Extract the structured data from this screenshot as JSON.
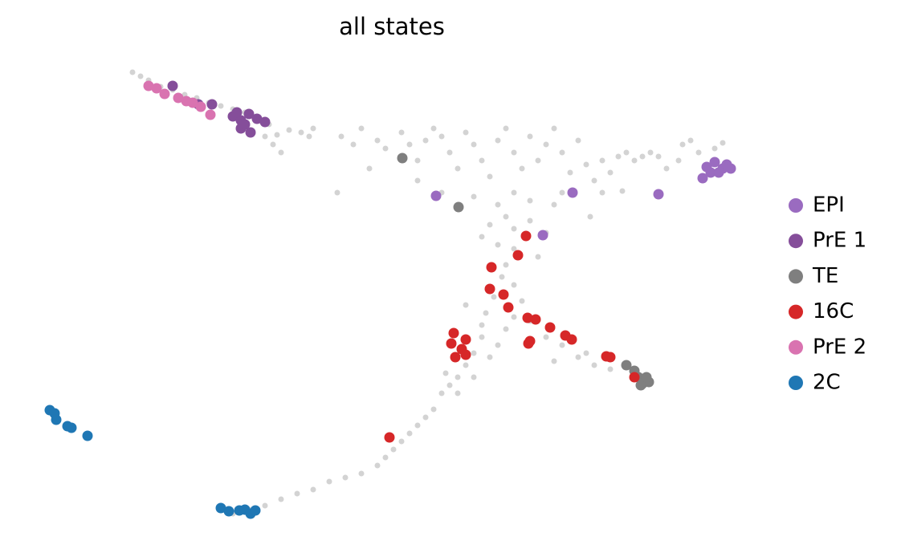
{
  "chart_data": {
    "type": "scatter",
    "title": "all states",
    "legend": "right",
    "background": {
      "color": "#d3d3d3",
      "x": [
        165,
        175,
        185,
        200,
        215,
        230,
        245,
        260,
        275,
        290,
        305,
        320,
        335,
        345,
        350,
        360,
        375,
        385,
        390,
        340,
        330,
        425,
        440,
        450,
        460,
        470,
        480,
        500,
        510,
        520,
        530,
        540,
        550,
        560,
        570,
        580,
        590,
        600,
        610,
        620,
        630,
        640,
        650,
        660,
        670,
        680,
        690,
        700,
        710,
        720,
        730,
        740,
        750,
        760,
        770,
        780,
        790,
        800,
        810,
        820,
        830,
        845,
        850,
        860,
        870,
        890,
        900,
        420,
        520,
        550,
        590,
        620,
        640,
        660,
        690,
        700,
        735,
        750,
        775,
        630,
        610,
        640,
        600,
        660,
        680,
        620,
        640,
        670,
        630,
        625,
        615,
        605,
        600,
        640,
        650,
        640,
        630,
        600,
        590,
        580,
        570,
        560,
        555,
        620,
        610,
        580,
        660,
        680,
        700,
        690,
        720,
        740,
        760,
        730,
        710,
        550,
        540,
        530,
        520,
        510,
        500,
        490,
        480,
        470,
        450,
        430,
        410,
        390,
        370,
        350,
        330,
        310,
        290,
        570,
        590
      ],
      "y": [
        600,
        595,
        590,
        582,
        578,
        572,
        568,
        562,
        558,
        554,
        550,
        542,
        535,
        522,
        500,
        528,
        525,
        520,
        530,
        510,
        520,
        520,
        510,
        530,
        480,
        515,
        505,
        525,
        510,
        490,
        515,
        530,
        520,
        500,
        480,
        525,
        510,
        490,
        470,
        515,
        530,
        500,
        480,
        520,
        490,
        510,
        530,
        500,
        475,
        515,
        485,
        465,
        490,
        475,
        495,
        500,
        490,
        495,
        500,
        495,
        480,
        490,
        510,
        515,
        500,
        505,
        512,
        450,
        465,
        450,
        445,
        435,
        450,
        440,
        435,
        450,
        420,
        450,
        452,
        420,
        410,
        405,
        395,
        415,
        400,
        385,
        380,
        370,
        360,
        345,
        320,
        300,
        285,
        335,
        315,
        295,
        280,
        270,
        250,
        235,
        220,
        210,
        225,
        260,
        245,
        310,
        290,
        270,
        260,
        240,
        245,
        235,
        230,
        250,
        270,
        200,
        180,
        170,
        160,
        150,
        140,
        130,
        120,
        110,
        100,
        95,
        90,
        80,
        75,
        68,
        60,
        55,
        50,
        200,
        220
      ]
    },
    "series": [
      {
        "name": "EPI",
        "color": "#9a6bc0",
        "x": [
          543,
          713,
          676,
          820,
          880,
          890,
          900,
          905,
          885,
          875,
          910,
          895
        ],
        "y": [
          446,
          450,
          397,
          448,
          482,
          488,
          480,
          485,
          475,
          468,
          480,
          475
        ]
      },
      {
        "name": "PrE 1",
        "color": "#854e9a",
        "x": [
          215,
          247,
          264,
          290,
          300,
          310,
          320,
          330,
          300,
          312,
          295,
          305
        ],
        "y": [
          583,
          560,
          560,
          545,
          540,
          548,
          542,
          538,
          530,
          525,
          550,
          535
        ]
      },
      {
        "name": "TE",
        "color": "#7f7f7f",
        "x": [
          501,
          571,
          780,
          790,
          795,
          800,
          808,
          798,
          805
        ],
        "y": [
          493,
          432,
          235,
          228,
          220,
          212,
          214,
          210,
          220
        ]
      },
      {
        "name": "16C",
        "color": "#d62728",
        "x": [
          655,
          645,
          612,
          610,
          627,
          633,
          565,
          580,
          562,
          575,
          567,
          580,
          657,
          667,
          685,
          658,
          660,
          704,
          712,
          755,
          760,
          790,
          485
        ],
        "y": [
          396,
          372,
          357,
          330,
          323,
          307,
          275,
          267,
          262,
          255,
          245,
          248,
          294,
          292,
          282,
          262,
          265,
          272,
          267,
          246,
          245,
          220,
          145
        ]
      },
      {
        "name": "PrE 2",
        "color": "#d973b0",
        "x": [
          185,
          195,
          205,
          222,
          232,
          240,
          250,
          262
        ],
        "y": [
          583,
          580,
          573,
          568,
          564,
          562,
          557,
          547
        ]
      },
      {
        "name": "2C",
        "color": "#1f77b4",
        "x": [
          62,
          68,
          70,
          84,
          89,
          109,
          275,
          285,
          298,
          305,
          312,
          318
        ],
        "y": [
          179,
          175,
          167,
          159,
          157,
          147,
          57,
          53,
          54,
          55,
          50,
          54
        ]
      }
    ]
  }
}
